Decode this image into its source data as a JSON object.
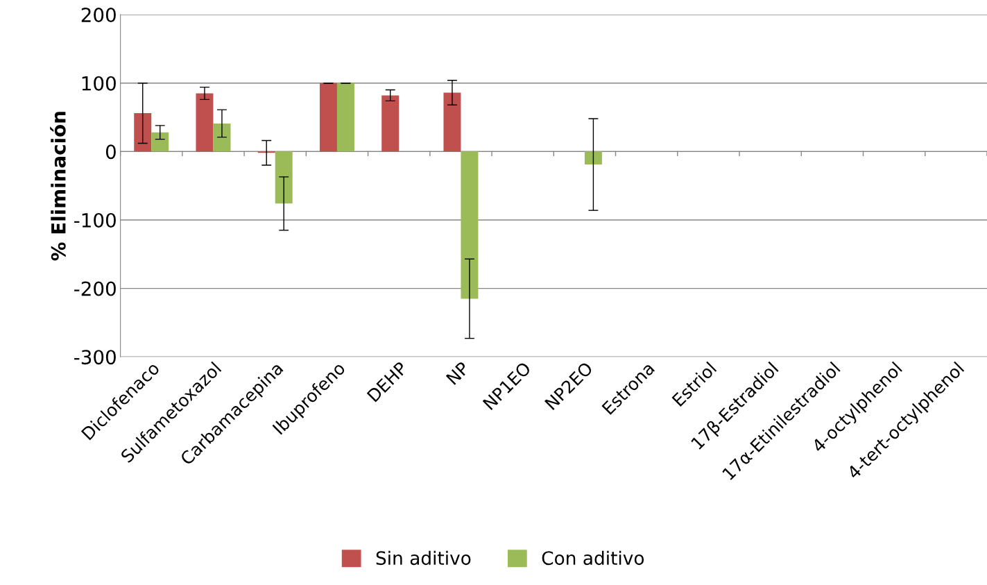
{
  "chart_data": {
    "type": "bar",
    "ylabel": "% Eliminación",
    "categories": [
      "Diclofenaco",
      "Sulfametoxazol",
      "Carbamacepina",
      "Ibuprofeno",
      "DEHP",
      "NP",
      "NP1EO",
      "NP2EO",
      "Estrona",
      "Estriol",
      "17β-Estradiol",
      "17α-Etinilestradiol",
      "4-octylphenol",
      "4-tert-octylphenol"
    ],
    "series": [
      {
        "name": "Sin aditivo",
        "color": "#c0504d",
        "values": [
          56,
          85,
          -2,
          100,
          82,
          86,
          null,
          null,
          null,
          null,
          null,
          null,
          null,
          null
        ],
        "errors": [
          44,
          9,
          18,
          0,
          8,
          18,
          null,
          null,
          null,
          null,
          null,
          null,
          null,
          null
        ]
      },
      {
        "name": "Con aditivo",
        "color": "#9bbb59",
        "values": [
          28,
          41,
          -76,
          100,
          null,
          -215,
          null,
          -19,
          null,
          null,
          null,
          null,
          null,
          null
        ],
        "errors": [
          10,
          20,
          39,
          0,
          null,
          58,
          null,
          67,
          null,
          null,
          null,
          null,
          null,
          null
        ]
      }
    ],
    "ylim": [
      -300,
      200
    ],
    "yticks": [
      -300,
      -200,
      -100,
      0,
      100,
      200
    ],
    "grid": "y",
    "legend": "bottom"
  }
}
